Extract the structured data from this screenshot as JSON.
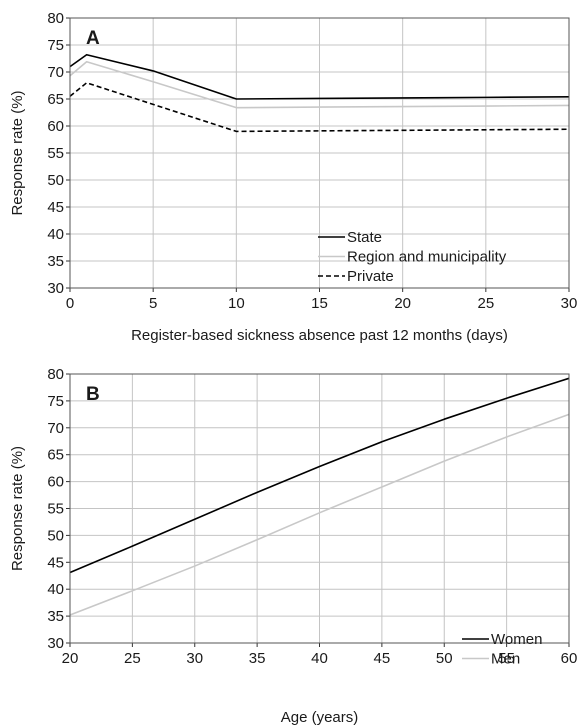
{
  "chart_data": [
    {
      "type": "line",
      "panel_label": "A",
      "xlabel": "Register-based sickness absence past 12 months (days)",
      "ylabel": "Response rate (%)",
      "xlim": [
        0,
        30
      ],
      "ylim": [
        30,
        80
      ],
      "xticks": [
        0,
        5,
        10,
        15,
        20,
        25,
        30
      ],
      "yticks": [
        30,
        35,
        40,
        45,
        50,
        55,
        60,
        65,
        70,
        75,
        80
      ],
      "grid": true,
      "legend_position": "bottom-right",
      "series": [
        {
          "name": "State",
          "color": "#000000",
          "dash": "solid",
          "x": [
            0,
            1,
            5,
            10,
            15,
            20,
            25,
            30
          ],
          "y": [
            71.0,
            73.2,
            70.2,
            65.0,
            65.1,
            65.2,
            65.3,
            65.4
          ]
        },
        {
          "name": "Region and municipality",
          "color": "#c8c8c8",
          "dash": "solid",
          "x": [
            0,
            1,
            5,
            10,
            15,
            20,
            25,
            30
          ],
          "y": [
            69.3,
            71.9,
            68.2,
            63.4,
            63.5,
            63.6,
            63.7,
            63.8
          ]
        },
        {
          "name": "Private",
          "color": "#000000",
          "dash": "dashed",
          "x": [
            0,
            1,
            5,
            10,
            15,
            20,
            25,
            30
          ],
          "y": [
            65.5,
            68.0,
            64.0,
            59.0,
            59.1,
            59.2,
            59.3,
            59.4
          ]
        }
      ]
    },
    {
      "type": "line",
      "panel_label": "B",
      "xlabel": "Age (years)",
      "ylabel": "Response rate (%)",
      "xlim": [
        20,
        60
      ],
      "ylim": [
        30,
        80
      ],
      "xticks": [
        20,
        25,
        30,
        35,
        40,
        45,
        50,
        55,
        60
      ],
      "yticks": [
        30,
        35,
        40,
        45,
        50,
        55,
        60,
        65,
        70,
        75,
        80
      ],
      "grid": true,
      "legend_position": "bottom-right",
      "series": [
        {
          "name": "Women",
          "color": "#000000",
          "dash": "solid",
          "x": [
            20,
            25,
            30,
            35,
            40,
            45,
            50,
            55,
            60
          ],
          "y": [
            43.1,
            48.0,
            53.0,
            58.0,
            62.8,
            67.4,
            71.6,
            75.5,
            79.2
          ]
        },
        {
          "name": "Men",
          "color": "#c8c8c8",
          "dash": "solid",
          "x": [
            20,
            25,
            30,
            35,
            40,
            45,
            50,
            55,
            60
          ],
          "y": [
            35.2,
            39.7,
            44.3,
            49.2,
            54.2,
            59.0,
            63.8,
            68.3,
            72.5
          ]
        }
      ]
    }
  ]
}
